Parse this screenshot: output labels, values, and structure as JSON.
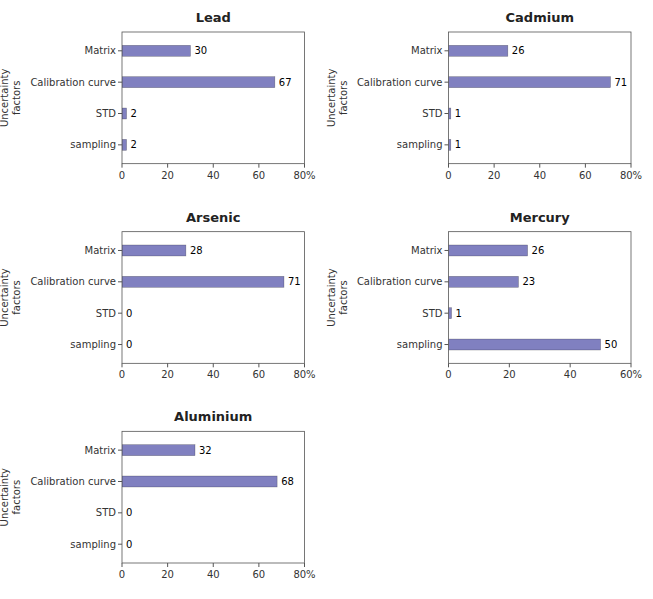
{
  "chart_data": [
    {
      "type": "bar",
      "orientation": "horizontal",
      "title": "Lead",
      "categories": [
        "Matrix",
        "Calibration curve",
        "STD",
        "sampling"
      ],
      "values": [
        30,
        67,
        2,
        2
      ],
      "color": "#8080c0",
      "xlim": [
        0,
        80
      ],
      "xticks": [
        0,
        20,
        40,
        60,
        {
          "value": 80,
          "label": "80%"
        }
      ],
      "ylabel": "Uncertainty\nfactors",
      "data_labels": true,
      "grid": false
    },
    {
      "type": "bar",
      "orientation": "horizontal",
      "title": "Cadmium",
      "categories": [
        "Matrix",
        "Calibration curve",
        "STD",
        "sampling"
      ],
      "values": [
        26,
        71,
        1,
        1
      ],
      "color": "#8080c0",
      "xlim": [
        0,
        80
      ],
      "xticks": [
        0,
        20,
        40,
        60,
        {
          "value": 80,
          "label": "80%"
        }
      ],
      "ylabel": "Uncertainty\nfactors",
      "data_labels": true,
      "grid": false
    },
    {
      "type": "bar",
      "orientation": "horizontal",
      "title": "Arsenic",
      "categories": [
        "Matrix",
        "Calibration curve",
        "STD",
        "sampling"
      ],
      "values": [
        28,
        71,
        0,
        0
      ],
      "color": "#8080c0",
      "xlim": [
        0,
        80
      ],
      "xticks": [
        0,
        20,
        40,
        60,
        {
          "value": 80,
          "label": "80%"
        }
      ],
      "ylabel": "Uncertainty\nfactors",
      "data_labels": true,
      "grid": false
    },
    {
      "type": "bar",
      "orientation": "horizontal",
      "title": "Mercury",
      "categories": [
        "Matrix",
        "Calibration curve",
        "STD",
        "sampling"
      ],
      "values": [
        26,
        23,
        1,
        50
      ],
      "color": "#8080c0",
      "xlim": [
        0,
        60
      ],
      "xticks": [
        0,
        20,
        40,
        {
          "value": 60,
          "label": "60%"
        }
      ],
      "ylabel": "Uncertainty\nfactors",
      "data_labels": true,
      "grid": false
    },
    {
      "type": "bar",
      "orientation": "horizontal",
      "title": "Aluminium",
      "categories": [
        "Matrix",
        "Calibration curve",
        "STD",
        "sampling"
      ],
      "values": [
        32,
        68,
        0,
        0
      ],
      "color": "#8080c0",
      "xlim": [
        0,
        80
      ],
      "xticks": [
        0,
        20,
        40,
        60,
        {
          "value": 80,
          "label": "80%"
        }
      ],
      "ylabel": "Uncertainty\nfactors",
      "data_labels": true,
      "grid": false
    }
  ]
}
